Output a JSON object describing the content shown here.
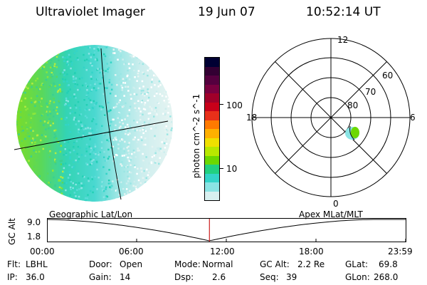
{
  "header": {
    "title": "Ultraviolet Imager",
    "date": "19 Jun 07",
    "time": "10:52:14 UT"
  },
  "colorbar": {
    "axis_label": "photon cm^-2 s^-1",
    "ticks": [
      "100",
      "10"
    ],
    "colors": [
      "#000033",
      "#330033",
      "#55003f",
      "#7a0040",
      "#a0002a",
      "#c8001a",
      "#e8301a",
      "#ff7a00",
      "#ffb000",
      "#f0e000",
      "#b8e800",
      "#6cd800",
      "#22d080",
      "#33d4c8",
      "#8ae4e4",
      "#d8f0f0"
    ]
  },
  "polar_plot": {
    "mlt_labels": {
      "top": "12",
      "left": "18",
      "right": "6",
      "bottom": "0"
    },
    "lat_labels": [
      "60",
      "70",
      "80"
    ]
  },
  "timeline": {
    "left_title": "Geographic Lat/Lon",
    "right_title": "Apex MLat/MLT",
    "y_axis_label": "GC Alt",
    "y_ticks": [
      "9.0",
      "1.8"
    ],
    "x_ticks": [
      "00:00",
      "06:00",
      "12:00",
      "18:00",
      "23:59"
    ],
    "current_time_hours": 10.87
  },
  "info": {
    "filter_label": "Flt:",
    "filter_value": "LBHL",
    "ip_label": "IP:",
    "ip_value": "36.0",
    "door_label": "Door:",
    "door_value": "Open",
    "gain_label": "Gain:",
    "gain_value": "14",
    "mode_label": "Mode:",
    "mode_value": "Normal",
    "dsp_label": "Dsp:",
    "dsp_value": "2.6",
    "gcalt_label": "GC Alt:",
    "gcalt_value": "2.2 Re",
    "seq_label": "Seq:",
    "seq_value": "39",
    "glat_label": "GLat:",
    "glat_value": "69.8",
    "glon_label": "GLon:",
    "glon_value": "268.0"
  },
  "colors": {
    "aurora_teal": "#33d4c8",
    "aurora_green": "#6cd800",
    "aurora_pale": "#d8f0f0",
    "time_marker": "#cc2222"
  }
}
